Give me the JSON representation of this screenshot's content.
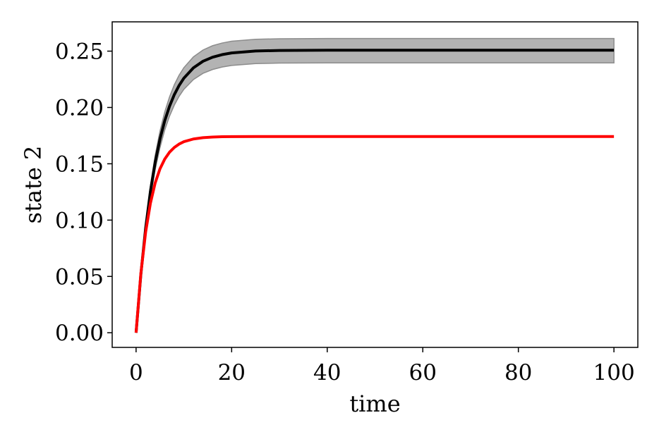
{
  "chart_data": {
    "type": "line",
    "title": "",
    "xlabel": "time",
    "ylabel": "state 2",
    "xlim": [
      -5,
      105
    ],
    "ylim": [
      -0.013,
      0.276
    ],
    "x_ticks": [
      0,
      20,
      40,
      60,
      80,
      100
    ],
    "x_tick_labels": [
      "0",
      "20",
      "40",
      "60",
      "80",
      "100"
    ],
    "y_ticks": [
      0.0,
      0.05,
      0.1,
      0.15,
      0.2,
      0.25
    ],
    "y_tick_labels": [
      "0.00",
      "0.05",
      "0.10",
      "0.15",
      "0.20",
      "0.25"
    ],
    "grid": false,
    "legend": "none",
    "x": [
      0,
      1,
      2,
      3,
      4,
      5,
      6,
      7,
      8,
      9,
      10,
      12,
      14,
      16,
      18,
      20,
      25,
      30,
      40,
      50,
      60,
      70,
      80,
      90,
      100
    ],
    "series": [
      {
        "color": "#000000",
        "values": [
          0.0,
          0.0518,
          0.0929,
          0.1255,
          0.1514,
          0.1719,
          0.1882,
          0.2011,
          0.2114,
          0.2195,
          0.226,
          0.2352,
          0.241,
          0.2446,
          0.2469,
          0.2484,
          0.2501,
          0.2506,
          0.2508,
          0.2508,
          0.2508,
          0.2508,
          0.2508,
          0.2508,
          0.2508
        ],
        "band_lower": [
          0.0,
          0.0496,
          0.0889,
          0.1201,
          0.1448,
          0.1644,
          0.18,
          0.1923,
          0.2021,
          0.2099,
          0.2161,
          0.2248,
          0.2303,
          0.2337,
          0.2359,
          0.2373,
          0.2389,
          0.2394,
          0.2396,
          0.2396,
          0.2396,
          0.2396,
          0.2396,
          0.2396,
          0.2396
        ],
        "band_upper": [
          0.0,
          0.0539,
          0.0966,
          0.1306,
          0.1576,
          0.179,
          0.196,
          0.2094,
          0.2201,
          0.2286,
          0.2353,
          0.2449,
          0.251,
          0.2548,
          0.2572,
          0.2588,
          0.2605,
          0.261,
          0.2612,
          0.2612,
          0.2612,
          0.2612,
          0.2612,
          0.2612,
          0.2612
        ],
        "band_color": "#b3b3b3"
      },
      {
        "color": "#ff0000",
        "values": [
          0.0,
          0.0526,
          0.0893,
          0.115,
          0.133,
          0.1455,
          0.1542,
          0.1603,
          0.1645,
          0.1675,
          0.1696,
          0.172,
          0.1732,
          0.1737,
          0.174,
          0.1741,
          0.1742,
          0.1742,
          0.1742,
          0.1742,
          0.1742,
          0.1742,
          0.1742,
          0.1742,
          0.1742
        ]
      }
    ]
  }
}
